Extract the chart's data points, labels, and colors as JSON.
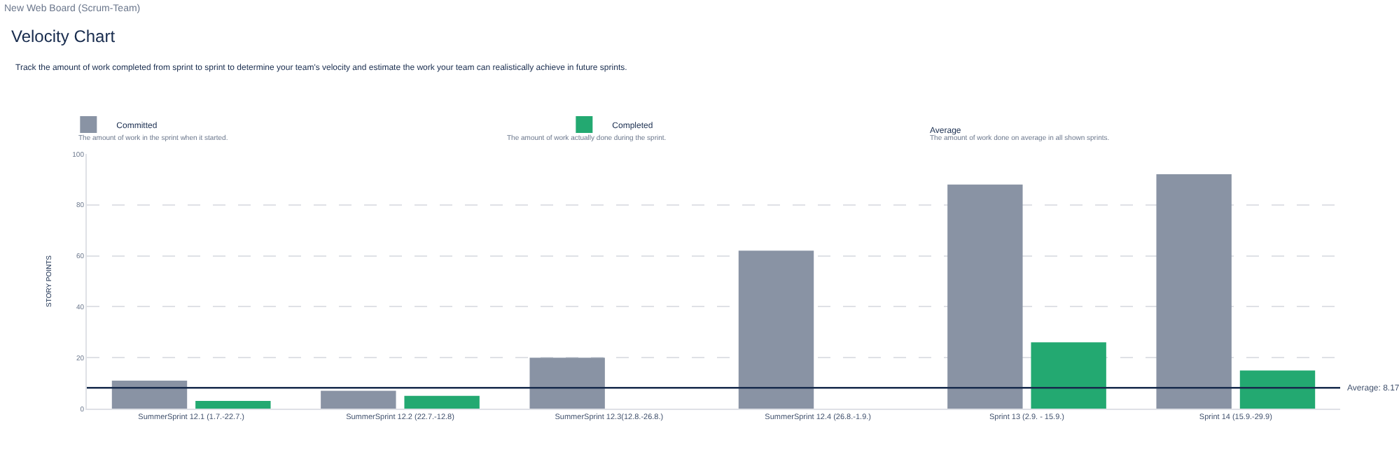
{
  "chart_data": {
    "type": "bar",
    "title": "Velocity Chart",
    "subtitle": "Track the amount of work completed from sprint to sprint to determine your team's velocity and estimate the work your team can realistically achieve in future sprints.",
    "ylabel": "STORY POINTS",
    "categories": [
      "SummerSprint 12.1 (1.7.-22.7.)",
      "SummerSprint 12.2 (22.7.-12.8)",
      "SummerSprint 12.3(12.8.-26.8.)",
      "SummerSprint 12.4 (26.8.-1.9.)",
      "Sprint 13 (2.9. - 15.9.)",
      "Sprint 14 (15.9.-29.9)"
    ],
    "series": [
      {
        "name": "Committed",
        "color": "#8993a4",
        "values": [
          11,
          7,
          20,
          62,
          88,
          92
        ]
      },
      {
        "name": "Completed",
        "color": "#23a971",
        "values": [
          3,
          5,
          0,
          0,
          26,
          15
        ]
      }
    ],
    "ylim": [
      0,
      100
    ],
    "yticks": [
      0,
      20,
      40,
      60,
      80,
      100
    ],
    "grid": "y",
    "legend": "top",
    "ref_lines": [
      {
        "axis": "y",
        "value": 8.17,
        "label": "Average: 8.17",
        "color": "#172b4d",
        "line_style": "solid"
      }
    ],
    "annotations": [
      "New Web Board (Scrum-Team)",
      "The amount of work in the sprint when it started.",
      "The amount of work actually done during the sprint.",
      "Average",
      "The amount of work done on average in all shown sprints."
    ]
  }
}
